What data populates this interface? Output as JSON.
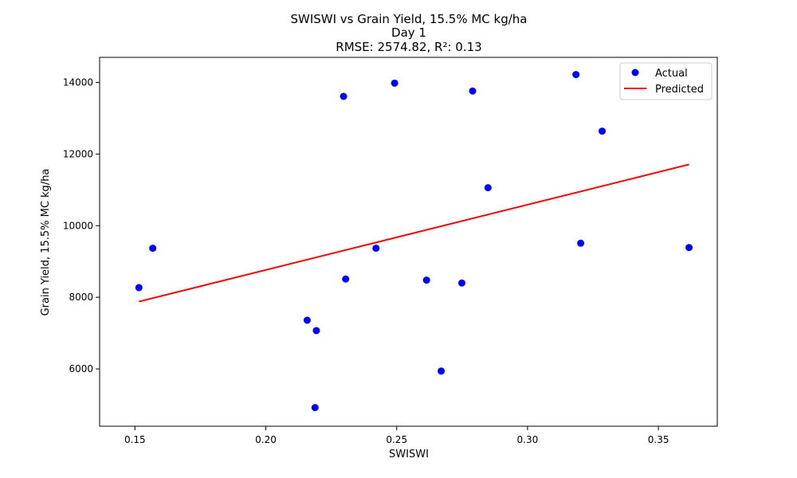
{
  "chart_data": {
    "type": "scatter",
    "title_lines": [
      "SWISWI vs Grain Yield, 15.5% MC kg/ha",
      "Day 1",
      "RMSE: 2574.82, R²: 0.13"
    ],
    "xlabel": "SWISWI",
    "ylabel": "Grain Yield, 15.5% MC kg/ha",
    "xlim": [
      0.1365,
      0.3725
    ],
    "ylim": [
      4400,
      14700
    ],
    "x_ticks": [
      0.15,
      0.2,
      0.25,
      0.3,
      0.35
    ],
    "x_tick_labels": [
      "0.15",
      "0.20",
      "0.25",
      "0.30",
      "0.35"
    ],
    "y_ticks": [
      6000,
      8000,
      10000,
      12000,
      14000
    ],
    "y_tick_labels": [
      "6000",
      "8000",
      "10000",
      "12000",
      "14000"
    ],
    "grid": false,
    "legend_position": "top-right",
    "series": [
      {
        "name": "Actual",
        "kind": "scatter",
        "color": "#0000ff",
        "points": [
          [
            0.1515,
            8270
          ],
          [
            0.1568,
            9370
          ],
          [
            0.2158,
            7360
          ],
          [
            0.2188,
            4920
          ],
          [
            0.2193,
            7070
          ],
          [
            0.2297,
            13610
          ],
          [
            0.2305,
            8510
          ],
          [
            0.2421,
            9370
          ],
          [
            0.2492,
            13980
          ],
          [
            0.2614,
            8480
          ],
          [
            0.267,
            5940
          ],
          [
            0.2749,
            8400
          ],
          [
            0.279,
            13760
          ],
          [
            0.2849,
            11060
          ],
          [
            0.3185,
            14220
          ],
          [
            0.3203,
            9510
          ],
          [
            0.3285,
            12640
          ],
          [
            0.3617,
            9390
          ]
        ]
      },
      {
        "name": "Predicted",
        "kind": "line",
        "color": "#ff0000",
        "points": [
          [
            0.1515,
            7880
          ],
          [
            0.3617,
            11710
          ]
        ]
      }
    ]
  }
}
